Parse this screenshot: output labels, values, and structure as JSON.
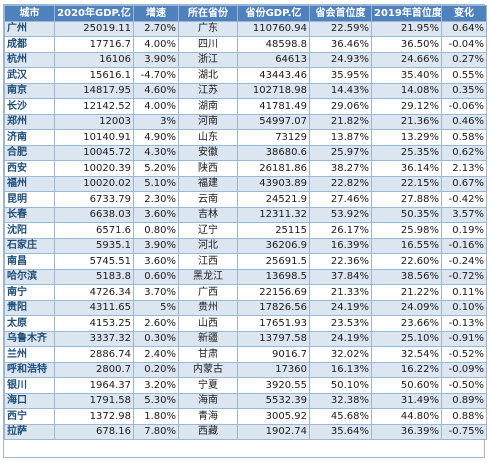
{
  "headers": [
    "城市",
    "2020年GDP.亿",
    "增速",
    "所在省份",
    "省份GDP.亿",
    "省会首位度",
    "2019年首位度",
    "变化"
  ],
  "rows": [
    [
      "广州",
      "25019.11",
      "2.70%",
      "广东",
      "110760.94",
      "22.59%",
      "21.95%",
      "0.64%"
    ],
    [
      "成都",
      "17716.7",
      "4.00%",
      "四川",
      "48598.8",
      "36.46%",
      "36.50%",
      "-0.04%"
    ],
    [
      "杭州",
      "16106",
      "3.90%",
      "浙江",
      "64613",
      "24.93%",
      "24.66%",
      "0.27%"
    ],
    [
      "武汉",
      "15616.1",
      "-4.70%",
      "湖北",
      "43443.46",
      "35.95%",
      "35.40%",
      "0.55%"
    ],
    [
      "南京",
      "14817.95",
      "4.60%",
      "江苏",
      "102718.98",
      "14.43%",
      "14.08%",
      "0.35%"
    ],
    [
      "长沙",
      "12142.52",
      "4.00%",
      "湖南",
      "41781.49",
      "29.06%",
      "29.12%",
      "-0.06%"
    ],
    [
      "郑州",
      "12003",
      "3%",
      "河南",
      "54997.07",
      "21.82%",
      "21.36%",
      "0.46%"
    ],
    [
      "济南",
      "10140.91",
      "4.90%",
      "山东",
      "73129",
      "13.87%",
      "13.29%",
      "0.58%"
    ],
    [
      "合肥",
      "10045.72",
      "4.30%",
      "安徽",
      "38680.6",
      "25.97%",
      "25.35%",
      "0.62%"
    ],
    [
      "西安",
      "10020.39",
      "5.20%",
      "陕西",
      "26181.86",
      "38.27%",
      "36.14%",
      "2.13%"
    ],
    [
      "福州",
      "10020.02",
      "5.10%",
      "福建",
      "43903.89",
      "22.82%",
      "22.15%",
      "0.67%"
    ],
    [
      "昆明",
      "6733.79",
      "2.30%",
      "云南",
      "24521.9",
      "27.46%",
      "27.88%",
      "-0.42%"
    ],
    [
      "长春",
      "6638.03",
      "3.60%",
      "吉林",
      "12311.32",
      "53.92%",
      "50.35%",
      "3.57%"
    ],
    [
      "沈阳",
      "6571.6",
      "0.80%",
      "辽宁",
      "25115",
      "26.17%",
      "25.98%",
      "0.19%"
    ],
    [
      "石家庄",
      "5935.1",
      "3.90%",
      "河北",
      "36206.9",
      "16.39%",
      "16.55%",
      "-0.16%"
    ],
    [
      "南昌",
      "5745.51",
      "3.60%",
      "江西",
      "25691.5",
      "22.36%",
      "22.60%",
      "-0.24%"
    ],
    [
      "哈尔滨",
      "5183.8",
      "0.60%",
      "黑龙江",
      "13698.5",
      "37.84%",
      "38.56%",
      "-0.72%"
    ],
    [
      "南宁",
      "4726.34",
      "3.70%",
      "广西",
      "22156.69",
      "21.33%",
      "21.22%",
      "0.11%"
    ],
    [
      "贵阳",
      "4311.65",
      "5%",
      "贵州",
      "17826.56",
      "24.19%",
      "24.09%",
      "0.10%"
    ],
    [
      "太原",
      "4153.25",
      "2.60%",
      "山西",
      "17651.93",
      "23.53%",
      "23.66%",
      "-0.13%"
    ],
    [
      "乌鲁木齐",
      "3337.32",
      "0.30%",
      "新疆",
      "13797.58",
      "24.19%",
      "25.10%",
      "-0.91%"
    ],
    [
      "兰州",
      "2886.74",
      "2.40%",
      "甘肃",
      "9016.7",
      "32.02%",
      "32.54%",
      "-0.52%"
    ],
    [
      "呼和浩特",
      "2800.7",
      "0.20%",
      "内蒙古",
      "17360",
      "16.13%",
      "16.22%",
      "-0.09%"
    ],
    [
      "银川",
      "1964.37",
      "3.20%",
      "宁夏",
      "3920.55",
      "50.10%",
      "50.60%",
      "-0.50%"
    ],
    [
      "海口",
      "1791.58",
      "5.30%",
      "海南",
      "5532.39",
      "32.38%",
      "31.49%",
      "0.89%"
    ],
    [
      "西宁",
      "1372.98",
      "1.80%",
      "青海",
      "3005.92",
      "45.68%",
      "44.80%",
      "0.88%"
    ],
    [
      "拉萨",
      "678.16",
      "7.80%",
      "西藏",
      "1902.74",
      "35.64%",
      "36.39%",
      "-0.75%"
    ]
  ],
  "colors": {
    "header_bg": "#4f81bd",
    "band_bg": "#dce6f1",
    "grid": "#9bb7d4",
    "city_text": "#1f4e79"
  }
}
